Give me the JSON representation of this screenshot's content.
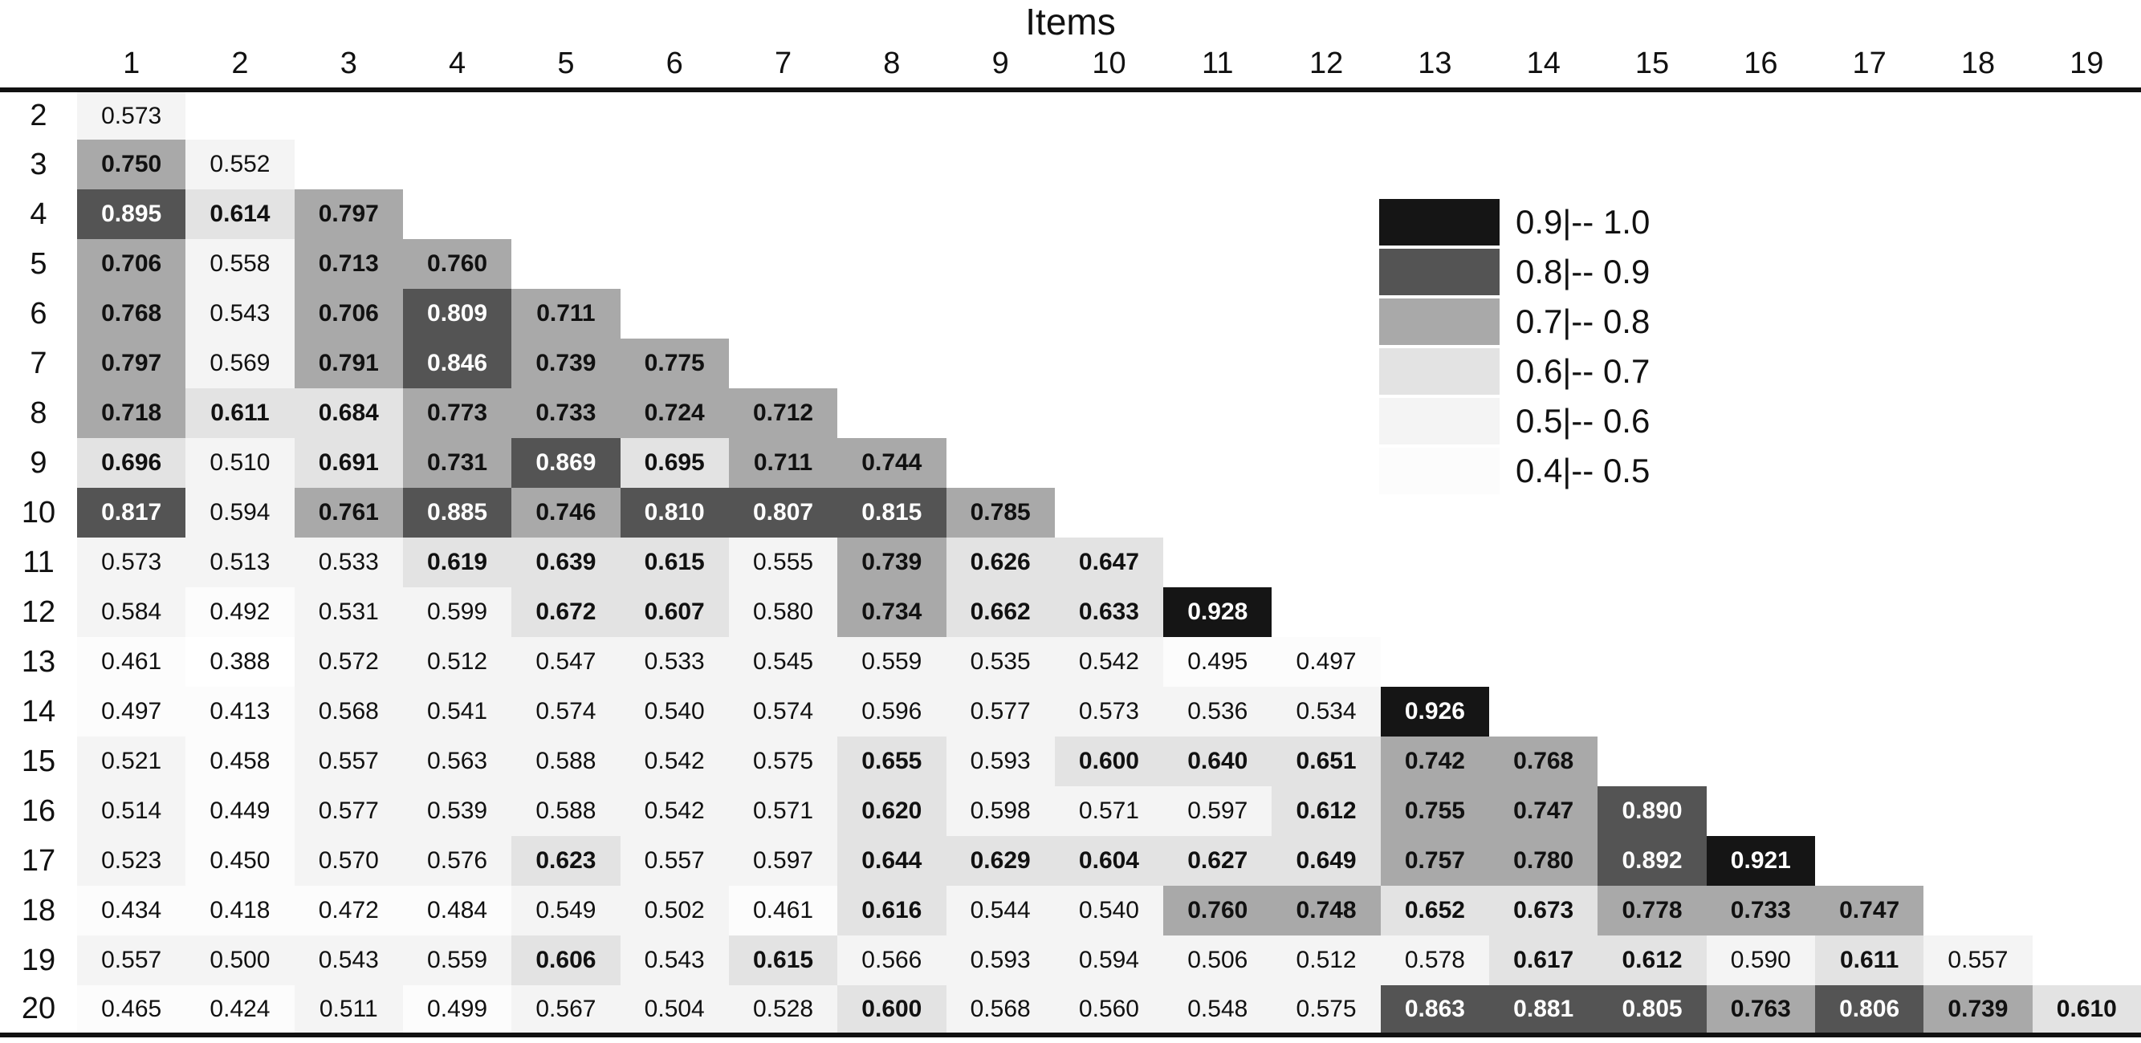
{
  "chart_data": {
    "type": "heatmap",
    "title": "Items",
    "description": "Lower-triangular inter-item correlation matrix, shaded by value",
    "columns": [
      "1",
      "2",
      "3",
      "4",
      "5",
      "6",
      "7",
      "8",
      "9",
      "10",
      "11",
      "12",
      "13",
      "14",
      "15",
      "16",
      "17",
      "18",
      "19"
    ],
    "row_labels": [
      "2",
      "3",
      "4",
      "5",
      "6",
      "7",
      "8",
      "9",
      "10",
      "11",
      "12",
      "13",
      "14",
      "15",
      "16",
      "17",
      "18",
      "19",
      "20"
    ],
    "rows": [
      {
        "values": [
          "0.573"
        ]
      },
      {
        "values": [
          "0.750",
          "0.552"
        ]
      },
      {
        "values": [
          "0.895",
          "0.614",
          "0.797"
        ]
      },
      {
        "values": [
          "0.706",
          "0.558",
          "0.713",
          "0.760"
        ]
      },
      {
        "values": [
          "0.768",
          "0.543",
          "0.706",
          "0.809",
          "0.711"
        ]
      },
      {
        "values": [
          "0.797",
          "0.569",
          "0.791",
          "0.846",
          "0.739",
          "0.775"
        ]
      },
      {
        "values": [
          "0.718",
          "0.611",
          "0.684",
          "0.773",
          "0.733",
          "0.724",
          "0.712"
        ]
      },
      {
        "values": [
          "0.696",
          "0.510",
          "0.691",
          "0.731",
          "0.869",
          "0.695",
          "0.711",
          "0.744"
        ]
      },
      {
        "values": [
          "0.817",
          "0.594",
          "0.761",
          "0.885",
          "0.746",
          "0.810",
          "0.807",
          "0.815",
          "0.785"
        ]
      },
      {
        "values": [
          "0.573",
          "0.513",
          "0.533",
          "0.619",
          "0.639",
          "0.615",
          "0.555",
          "0.739",
          "0.626",
          "0.647"
        ]
      },
      {
        "values": [
          "0.584",
          "0.492",
          "0.531",
          "0.599",
          "0.672",
          "0.607",
          "0.580",
          "0.734",
          "0.662",
          "0.633",
          "0.928"
        ]
      },
      {
        "values": [
          "0.461",
          "0.388",
          "0.572",
          "0.512",
          "0.547",
          "0.533",
          "0.545",
          "0.559",
          "0.535",
          "0.542",
          "0.495",
          "0.497"
        ]
      },
      {
        "values": [
          "0.497",
          "0.413",
          "0.568",
          "0.541",
          "0.574",
          "0.540",
          "0.574",
          "0.596",
          "0.577",
          "0.573",
          "0.536",
          "0.534",
          "0.926"
        ]
      },
      {
        "values": [
          "0.521",
          "0.458",
          "0.557",
          "0.563",
          "0.588",
          "0.542",
          "0.575",
          "0.655",
          "0.593",
          "0.600",
          "0.640",
          "0.651",
          "0.742",
          "0.768"
        ]
      },
      {
        "values": [
          "0.514",
          "0.449",
          "0.577",
          "0.539",
          "0.588",
          "0.542",
          "0.571",
          "0.620",
          "0.598",
          "0.571",
          "0.597",
          "0.612",
          "0.755",
          "0.747",
          "0.890"
        ]
      },
      {
        "values": [
          "0.523",
          "0.450",
          "0.570",
          "0.576",
          "0.623",
          "0.557",
          "0.597",
          "0.644",
          "0.629",
          "0.604",
          "0.627",
          "0.649",
          "0.757",
          "0.780",
          "0.892",
          "0.921"
        ]
      },
      {
        "values": [
          "0.434",
          "0.418",
          "0.472",
          "0.484",
          "0.549",
          "0.502",
          "0.461",
          "0.616",
          "0.544",
          "0.540",
          "0.760",
          "0.748",
          "0.652",
          "0.673",
          "0.778",
          "0.733",
          "0.747"
        ]
      },
      {
        "values": [
          "0.557",
          "0.500",
          "0.543",
          "0.559",
          "0.606",
          "0.543",
          "0.615",
          "0.566",
          "0.593",
          "0.594",
          "0.506",
          "0.512",
          "0.578",
          "0.617",
          "0.612",
          "0.590",
          "0.611",
          "0.557"
        ]
      },
      {
        "values": [
          "0.465",
          "0.424",
          "0.511",
          "0.499",
          "0.567",
          "0.504",
          "0.528",
          "0.600",
          "0.568",
          "0.560",
          "0.548",
          "0.575",
          "0.863",
          "0.881",
          "0.805",
          "0.763",
          "0.806",
          "0.739",
          "0.610"
        ]
      }
    ],
    "legend": [
      {
        "label": "0.9|-- 1.0",
        "min": 0.9,
        "max": 1.0,
        "color": "#151515",
        "text_color": "#ffffff"
      },
      {
        "label": "0.8|-- 0.9",
        "min": 0.8,
        "max": 0.9,
        "color": "#545454",
        "text_color": "#ffffff"
      },
      {
        "label": "0.7|-- 0.8",
        "min": 0.7,
        "max": 0.8,
        "color": "#a9a9a9",
        "text_color": "#111111"
      },
      {
        "label": "0.6|-- 0.7",
        "min": 0.6,
        "max": 0.7,
        "color": "#e3e3e3",
        "text_color": "#111111"
      },
      {
        "label": "0.5|-- 0.6",
        "min": 0.5,
        "max": 0.6,
        "color": "#f4f4f4",
        "text_color": "#111111"
      },
      {
        "label": "0.4|-- 0.5",
        "min": 0.4,
        "max": 0.5,
        "color": "#fcfcfc",
        "text_color": "#111111"
      }
    ],
    "layout": {
      "legend_position": "inset-upper-right",
      "grid": false,
      "empty_upper_triangle": true
    }
  }
}
